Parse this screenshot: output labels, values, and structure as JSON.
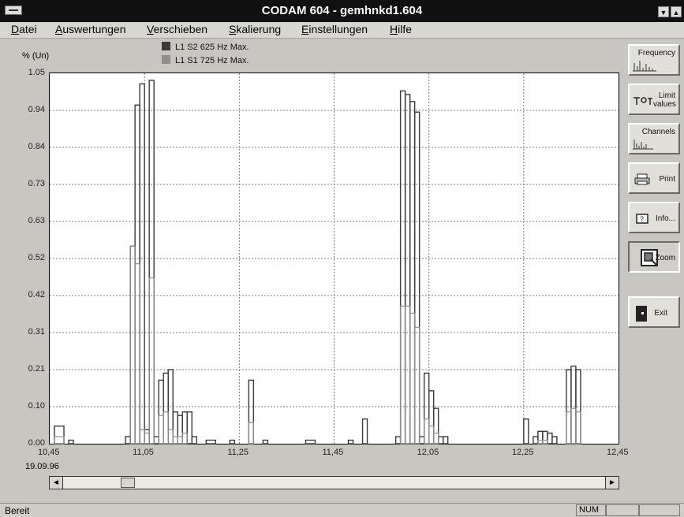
{
  "window": {
    "title": "CODAM 604 - gemhnkd1.604",
    "min_glyph": "▼",
    "max_glyph": "▲"
  },
  "menu": [
    {
      "accel": "D",
      "rest": "atei"
    },
    {
      "accel": "A",
      "rest": "uswertungen"
    },
    {
      "accel": "V",
      "rest": "erschieben"
    },
    {
      "accel": "S",
      "rest": "kalierung"
    },
    {
      "accel": "E",
      "rest": "instellungen"
    },
    {
      "accel": "H",
      "rest": "ilfe"
    }
  ],
  "legend": [
    {
      "label": "L1 S2  625 Hz   Max.",
      "color": "#3a3a3a"
    },
    {
      "label": "L1 S1  725 Hz   Max.",
      "color": "#8e8e8e"
    }
  ],
  "y_unit": "% (Un)",
  "date_label": "19.09.96",
  "buttons": {
    "frequency": "Frequency",
    "limit_values": "Limit values",
    "channels": "Channels",
    "print": "Print",
    "info": "Info...",
    "zoom": "Zoom",
    "exit": "Exit"
  },
  "scrollbar": {
    "left_arrow": "◄",
    "right_arrow": "►",
    "thumb_position": 0.11
  },
  "status": {
    "text": "Bereit",
    "num": "NUM"
  },
  "chart_data": {
    "type": "bar",
    "title": "",
    "ylabel": "% (Un)",
    "xlabel": "",
    "y_ticks": [
      "0.00",
      "0.10",
      "0.21",
      "0.31",
      "0.42",
      "0.52",
      "0.63",
      "0.73",
      "0.84",
      "0.94",
      "1.05"
    ],
    "x_ticks": [
      "10,45",
      "11,05",
      "11,25",
      "11,45",
      "12,05",
      "12,25",
      "12,45"
    ],
    "ylim": [
      0,
      1.05
    ],
    "xlim": [
      0,
      120
    ],
    "grid": true,
    "series": [
      {
        "name": "L1 S2  625 Hz   Max.",
        "color": "#3a3a3a",
        "bars": [
          [
            1,
            3,
            0.05
          ],
          [
            4,
            5,
            0.01
          ],
          [
            16,
            17,
            0.02
          ],
          [
            17,
            18,
            0.56
          ],
          [
            18,
            19,
            0.96
          ],
          [
            19,
            20,
            1.02
          ],
          [
            20,
            21,
            0.04
          ],
          [
            21,
            22,
            1.03
          ],
          [
            22,
            23,
            0.02
          ],
          [
            23,
            24,
            0.18
          ],
          [
            24,
            25,
            0.2
          ],
          [
            25,
            26,
            0.21
          ],
          [
            26,
            27,
            0.09
          ],
          [
            27,
            28,
            0.08
          ],
          [
            28,
            29,
            0.09
          ],
          [
            29,
            30,
            0.09
          ],
          [
            30,
            31,
            0.02
          ],
          [
            33,
            35,
            0.01
          ],
          [
            38,
            39,
            0.01
          ],
          [
            42,
            43,
            0.18
          ],
          [
            45,
            46,
            0.01
          ],
          [
            54,
            56,
            0.01
          ],
          [
            63,
            64,
            0.01
          ],
          [
            66,
            67,
            0.07
          ],
          [
            73,
            74,
            0.02
          ],
          [
            74,
            75,
            1.0
          ],
          [
            75,
            76,
            0.99
          ],
          [
            76,
            77,
            0.97
          ],
          [
            77,
            78,
            0.94
          ],
          [
            78,
            79,
            0.02
          ],
          [
            79,
            80,
            0.2
          ],
          [
            80,
            81,
            0.15
          ],
          [
            81,
            82,
            0.1
          ],
          [
            82,
            83,
            0.02
          ],
          [
            83,
            84,
            0.02
          ],
          [
            100,
            101,
            0.07
          ],
          [
            102,
            103,
            0.02
          ],
          [
            103,
            104,
            0.035
          ],
          [
            104,
            105,
            0.035
          ],
          [
            105,
            106,
            0.03
          ],
          [
            106,
            107,
            0.02
          ],
          [
            109,
            110,
            0.21
          ],
          [
            110,
            111,
            0.22
          ],
          [
            111,
            112,
            0.21
          ]
        ]
      },
      {
        "name": "L1 S1  725 Hz   Max.",
        "color": "#8e8e8e",
        "bars": [
          [
            1,
            3,
            0.02
          ],
          [
            17,
            18,
            0.56
          ],
          [
            18,
            19,
            0.51
          ],
          [
            19,
            20,
            0.04
          ],
          [
            20,
            21,
            0.03
          ],
          [
            21,
            22,
            0.47
          ],
          [
            23,
            24,
            0.08
          ],
          [
            24,
            25,
            0.09
          ],
          [
            25,
            26,
            0.04
          ],
          [
            26,
            27,
            0.02
          ],
          [
            27,
            28,
            0.02
          ],
          [
            28,
            29,
            0.03
          ],
          [
            42,
            43,
            0.06
          ],
          [
            74,
            75,
            0.39
          ],
          [
            75,
            76,
            0.39
          ],
          [
            76,
            77,
            0.37
          ],
          [
            77,
            78,
            0.33
          ],
          [
            79,
            80,
            0.07
          ],
          [
            80,
            81,
            0.05
          ],
          [
            81,
            82,
            0.03
          ],
          [
            103,
            104,
            0.01
          ],
          [
            104,
            105,
            0.01
          ],
          [
            109,
            110,
            0.09
          ],
          [
            110,
            111,
            0.1
          ],
          [
            111,
            112,
            0.09
          ]
        ]
      }
    ]
  }
}
